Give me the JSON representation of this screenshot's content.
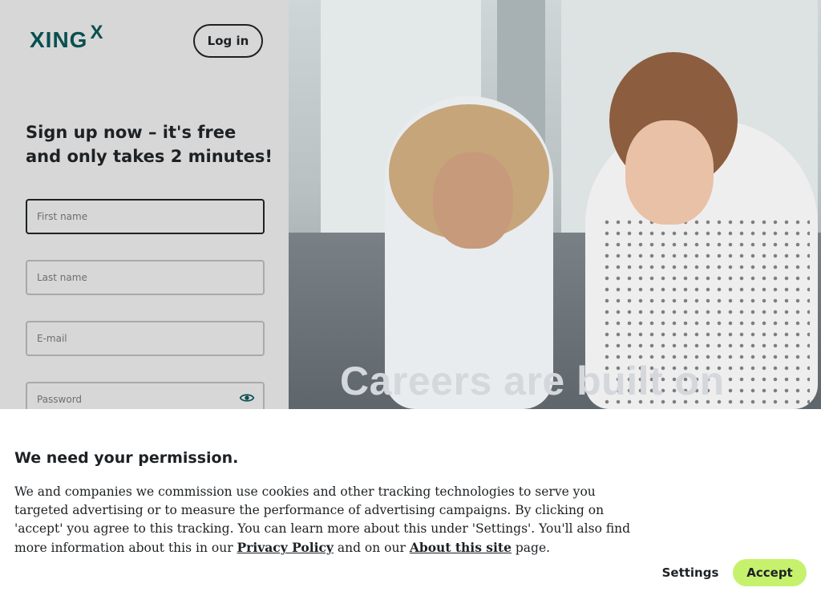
{
  "header": {
    "logo_text": "XING",
    "logo_mark": "X",
    "login_label": "Log in"
  },
  "signup": {
    "headline": "Sign up now – it's free and only takes 2 minutes!",
    "first_name_placeholder": "First name",
    "last_name_placeholder": "Last name",
    "email_placeholder": "E-mail",
    "password_placeholder": "Password",
    "password_toggle_icon": "eye-icon"
  },
  "hero": {
    "heading": "Careers are built on"
  },
  "cookie_banner": {
    "title": "We need your permission.",
    "text_before_link1": "We and companies we commission use cookies and other tracking technologies to serve you targeted advertising or to measure the performance of advertising campaigns. By clicking on 'accept' you agree to this tracking. You can learn more about this under 'Settings'. You'll also find more information about this in our ",
    "link_privacy": "Privacy Policy",
    "text_between_links": " and on our ",
    "link_about": "About this site",
    "text_after_link2": " page.",
    "settings_label": "Settings",
    "accept_label": "Accept"
  },
  "colors": {
    "brand": "#0b4f4f",
    "accept_button": "#c6f16d",
    "panel_background": "#d7d7d7"
  }
}
